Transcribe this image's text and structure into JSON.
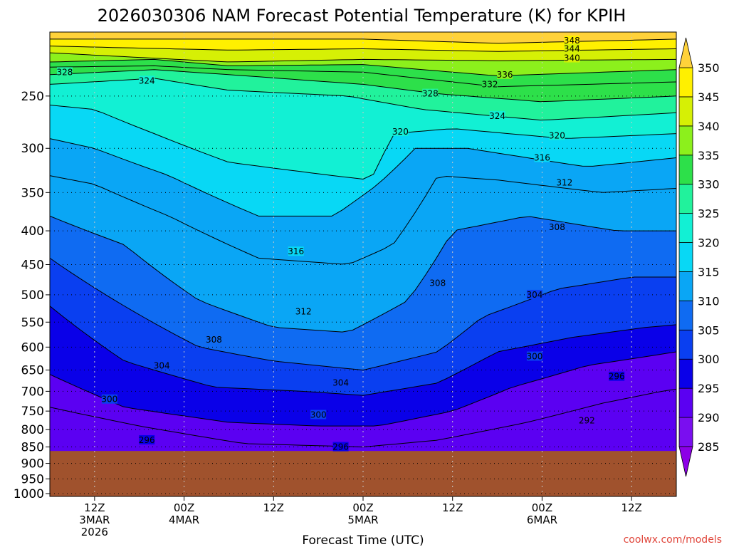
{
  "chart_data": {
    "type": "heatmap",
    "title": "2026030306 NAM Forecast Potential Temperature (K) for KPIH",
    "xlabel": "Forecast Time (UTC)",
    "ylabel": "",
    "credit": "coolwx.com/models",
    "y_axis": {
      "scale": "log-pressure",
      "range_hPa": [
        1000,
        200
      ],
      "ticks": [
        "250",
        "300",
        "350",
        "400",
        "450",
        "500",
        "550",
        "600",
        "650",
        "700",
        "750",
        "800",
        "850",
        "900",
        "950",
        "1000"
      ]
    },
    "x_axis": {
      "range_hours": [
        6,
        90
      ],
      "ticks": [
        {
          "hour": 12,
          "lines": [
            "12Z",
            "3MAR",
            "2026"
          ]
        },
        {
          "hour": 24,
          "lines": [
            "00Z",
            "4MAR"
          ]
        },
        {
          "hour": 36,
          "lines": [
            "12Z"
          ]
        },
        {
          "hour": 48,
          "lines": [
            "00Z",
            "5MAR"
          ]
        },
        {
          "hour": 60,
          "lines": [
            "12Z"
          ]
        },
        {
          "hour": 72,
          "lines": [
            "00Z",
            "6MAR"
          ]
        },
        {
          "hour": 84,
          "lines": [
            "12Z"
          ]
        }
      ]
    },
    "ground_surface_hPa": 862,
    "colorbar": {
      "min": 280,
      "max": 355,
      "labels": [
        "285",
        "290",
        "295",
        "300",
        "305",
        "310",
        "315",
        "320",
        "325",
        "330",
        "335",
        "340",
        "345",
        "350"
      ],
      "bands": [
        {
          "from": 280,
          "to": 285,
          "color": "#8c00e6"
        },
        {
          "from": 285,
          "to": 290,
          "color": "#7a0ef0"
        },
        {
          "from": 290,
          "to": 295,
          "color": "#5b00f2"
        },
        {
          "from": 295,
          "to": 300,
          "color": "#0a00e8"
        },
        {
          "from": 300,
          "to": 305,
          "color": "#0a3ff0"
        },
        {
          "from": 305,
          "to": 310,
          "color": "#0f6bf2"
        },
        {
          "from": 310,
          "to": 315,
          "color": "#0aa6f5"
        },
        {
          "from": 315,
          "to": 320,
          "color": "#08d8f5"
        },
        {
          "from": 320,
          "to": 325,
          "color": "#12f0d4"
        },
        {
          "from": 325,
          "to": 330,
          "color": "#21f29c"
        },
        {
          "from": 330,
          "to": 335,
          "color": "#2de04a"
        },
        {
          "from": 335,
          "to": 340,
          "color": "#8cf01c"
        },
        {
          "from": 340,
          "to": 345,
          "color": "#d6f005"
        },
        {
          "from": 345,
          "to": 350,
          "color": "#fff000"
        },
        {
          "from": 350,
          "to": 355,
          "color": "#ffd23a"
        }
      ]
    },
    "ground_color": "#a0522d",
    "contour_interval_K": 4,
    "series": [
      {
        "name": "348",
        "hours": [
          6,
          30,
          48,
          66,
          90
        ],
        "pressure_hPa": [
          205,
          205,
          205,
          208,
          205
        ]
      },
      {
        "name": "344",
        "hours": [
          6,
          30,
          48,
          66,
          90
        ],
        "pressure_hPa": [
          210,
          213,
          212,
          214,
          212
        ]
      },
      {
        "name": "340",
        "hours": [
          6,
          30,
          48,
          66,
          90
        ],
        "pressure_hPa": [
          215,
          222,
          220,
          221,
          220
        ]
      },
      {
        "name": "336",
        "hours": [
          6,
          20,
          30,
          48,
          66,
          90
        ],
        "pressure_hPa": [
          222,
          220,
          225,
          224,
          233,
          228
        ]
      },
      {
        "name": "332",
        "hours": [
          6,
          20,
          30,
          48,
          66,
          90
        ],
        "pressure_hPa": [
          226,
          225,
          228,
          230,
          242,
          238
        ]
      },
      {
        "name": "328",
        "hours": [
          6,
          20,
          30,
          48,
          58,
          72,
          90
        ],
        "pressure_hPa": [
          232,
          228,
          232,
          240,
          248,
          255,
          250
        ]
      },
      {
        "name": "324",
        "hours": [
          6,
          20,
          30,
          46,
          56,
          72,
          90
        ],
        "pressure_hPa": [
          240,
          235,
          245,
          250,
          262,
          272,
          265
        ]
      },
      {
        "name": "320",
        "hours": [
          6,
          12,
          20,
          30,
          44,
          49,
          52,
          60,
          75,
          90
        ],
        "pressure_hPa": [
          258,
          262,
          285,
          315,
          330,
          335,
          285,
          280,
          290,
          285
        ]
      },
      {
        "name": "316",
        "hours": [
          6,
          12,
          22,
          34,
          44,
          50,
          55,
          62,
          78,
          90
        ],
        "pressure_hPa": [
          290,
          300,
          330,
          380,
          380,
          340,
          300,
          300,
          320,
          310
        ]
      },
      {
        "name": "312",
        "hours": [
          6,
          12,
          22,
          34,
          46,
          52,
          58,
          66,
          80,
          90
        ],
        "pressure_hPa": [
          330,
          340,
          380,
          440,
          450,
          420,
          330,
          335,
          350,
          345
        ]
      },
      {
        "name": "308",
        "hours": [
          6,
          16,
          26,
          36,
          46,
          54,
          60,
          70,
          82,
          90
        ],
        "pressure_hPa": [
          380,
          420,
          510,
          560,
          570,
          510,
          400,
          380,
          400,
          400
        ]
      },
      {
        "name": "304",
        "hours": [
          6,
          16,
          26,
          36,
          48,
          58,
          64,
          74,
          84,
          90
        ],
        "pressure_hPa": [
          440,
          520,
          600,
          630,
          650,
          610,
          540,
          490,
          470,
          470
        ]
      },
      {
        "name": "300",
        "hours": [
          6,
          16,
          28,
          40,
          48,
          58,
          66,
          76,
          86,
          90
        ],
        "pressure_hPa": [
          520,
          630,
          690,
          700,
          710,
          680,
          610,
          580,
          560,
          555
        ]
      },
      {
        "name": "296",
        "hours": [
          6,
          16,
          30,
          42,
          50,
          60,
          68,
          78,
          86,
          90
        ],
        "pressure_hPa": [
          660,
          740,
          780,
          790,
          790,
          750,
          690,
          640,
          620,
          610
        ]
      },
      {
        "name": "292",
        "hours": [
          6,
          18,
          32,
          48,
          58,
          70,
          80,
          88,
          90
        ],
        "pressure_hPa": [
          740,
          790,
          840,
          850,
          830,
          780,
          730,
          700,
          695
        ]
      }
    ],
    "contour_labels": [
      {
        "text": "348",
        "hour": 76,
        "pressure_hPa": 206
      },
      {
        "text": "344",
        "hour": 76,
        "pressure_hPa": 212
      },
      {
        "text": "340",
        "hour": 76,
        "pressure_hPa": 219
      },
      {
        "text": "336",
        "hour": 67,
        "pressure_hPa": 232
      },
      {
        "text": "332",
        "hour": 65,
        "pressure_hPa": 240
      },
      {
        "text": "328",
        "hour": 8,
        "pressure_hPa": 230
      },
      {
        "text": "328",
        "hour": 57,
        "pressure_hPa": 248
      },
      {
        "text": "324",
        "hour": 19,
        "pressure_hPa": 237
      },
      {
        "text": "324",
        "hour": 66,
        "pressure_hPa": 268
      },
      {
        "text": "320",
        "hour": 53,
        "pressure_hPa": 283
      },
      {
        "text": "320",
        "hour": 74,
        "pressure_hPa": 287
      },
      {
        "text": "316",
        "hour": 72,
        "pressure_hPa": 310
      },
      {
        "text": "316",
        "hour": 39,
        "pressure_hPa": 430
      },
      {
        "text": "312",
        "hour": 75,
        "pressure_hPa": 338
      },
      {
        "text": "312",
        "hour": 40,
        "pressure_hPa": 530
      },
      {
        "text": "308",
        "hour": 74,
        "pressure_hPa": 395
      },
      {
        "text": "308",
        "hour": 28,
        "pressure_hPa": 585
      },
      {
        "text": "308",
        "hour": 58,
        "pressure_hPa": 480
      },
      {
        "text": "304",
        "hour": 71,
        "pressure_hPa": 500
      },
      {
        "text": "304",
        "hour": 21,
        "pressure_hPa": 640
      },
      {
        "text": "304",
        "hour": 45,
        "pressure_hPa": 680
      },
      {
        "text": "300",
        "hour": 14,
        "pressure_hPa": 720
      },
      {
        "text": "300",
        "hour": 42,
        "pressure_hPa": 760
      },
      {
        "text": "300",
        "hour": 71,
        "pressure_hPa": 620
      },
      {
        "text": "296",
        "hour": 19,
        "pressure_hPa": 830
      },
      {
        "text": "296",
        "hour": 45,
        "pressure_hPa": 850
      },
      {
        "text": "296",
        "hour": 82,
        "pressure_hPa": 665
      },
      {
        "text": "292",
        "hour": 78,
        "pressure_hPa": 775
      }
    ]
  }
}
